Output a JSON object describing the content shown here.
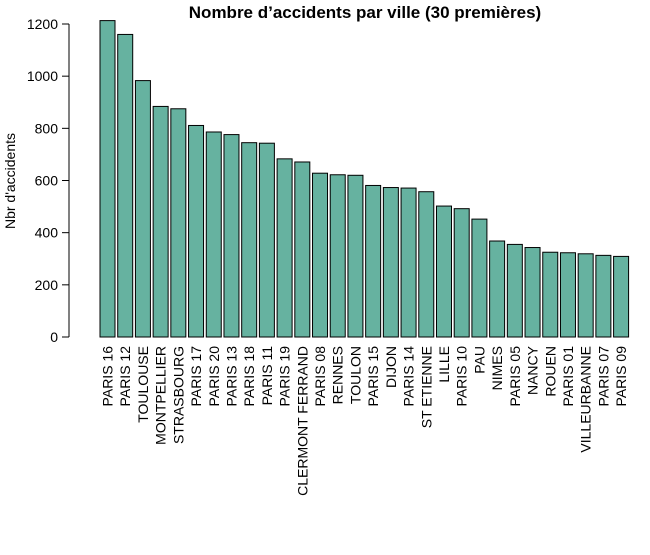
{
  "chart_data": {
    "type": "bar",
    "title": "Nombre d’accidents par ville (30 premières)",
    "xlabel": "",
    "ylabel": "Nbr d'accidents",
    "ylim": [
      0,
      1220
    ],
    "yticks": [
      0,
      200,
      400,
      600,
      800,
      1000,
      1200
    ],
    "grid": false,
    "legend": "none",
    "bar_color": "#66B2A0",
    "bar_edge_color": "#000000",
    "categories": [
      "PARIS 16",
      "PARIS 12",
      "TOULOUSE",
      "MONTPELLIER",
      "STRASBOURG",
      "PARIS 17",
      "PARIS 20",
      "PARIS 13",
      "PARIS 18",
      "PARIS 11",
      "PARIS 19",
      "CLERMONT FERRAND",
      "PARIS 08",
      "RENNES",
      "TOULON",
      "PARIS 15",
      "DIJON",
      "PARIS 14",
      "ST ETIENNE",
      "LILLE",
      "PARIS 10",
      "PAU",
      "NIMES",
      "PARIS 05",
      "NANCY",
      "ROUEN",
      "PARIS 01",
      "VILLEURBANNE",
      "PARIS 07",
      "PARIS 09"
    ],
    "values": [
      1213,
      1160,
      983,
      884,
      875,
      811,
      786,
      776,
      745,
      743,
      683,
      671,
      628,
      622,
      620,
      581,
      573,
      571,
      557,
      502,
      492,
      452,
      368,
      355,
      343,
      325,
      323,
      319,
      313,
      309
    ]
  }
}
